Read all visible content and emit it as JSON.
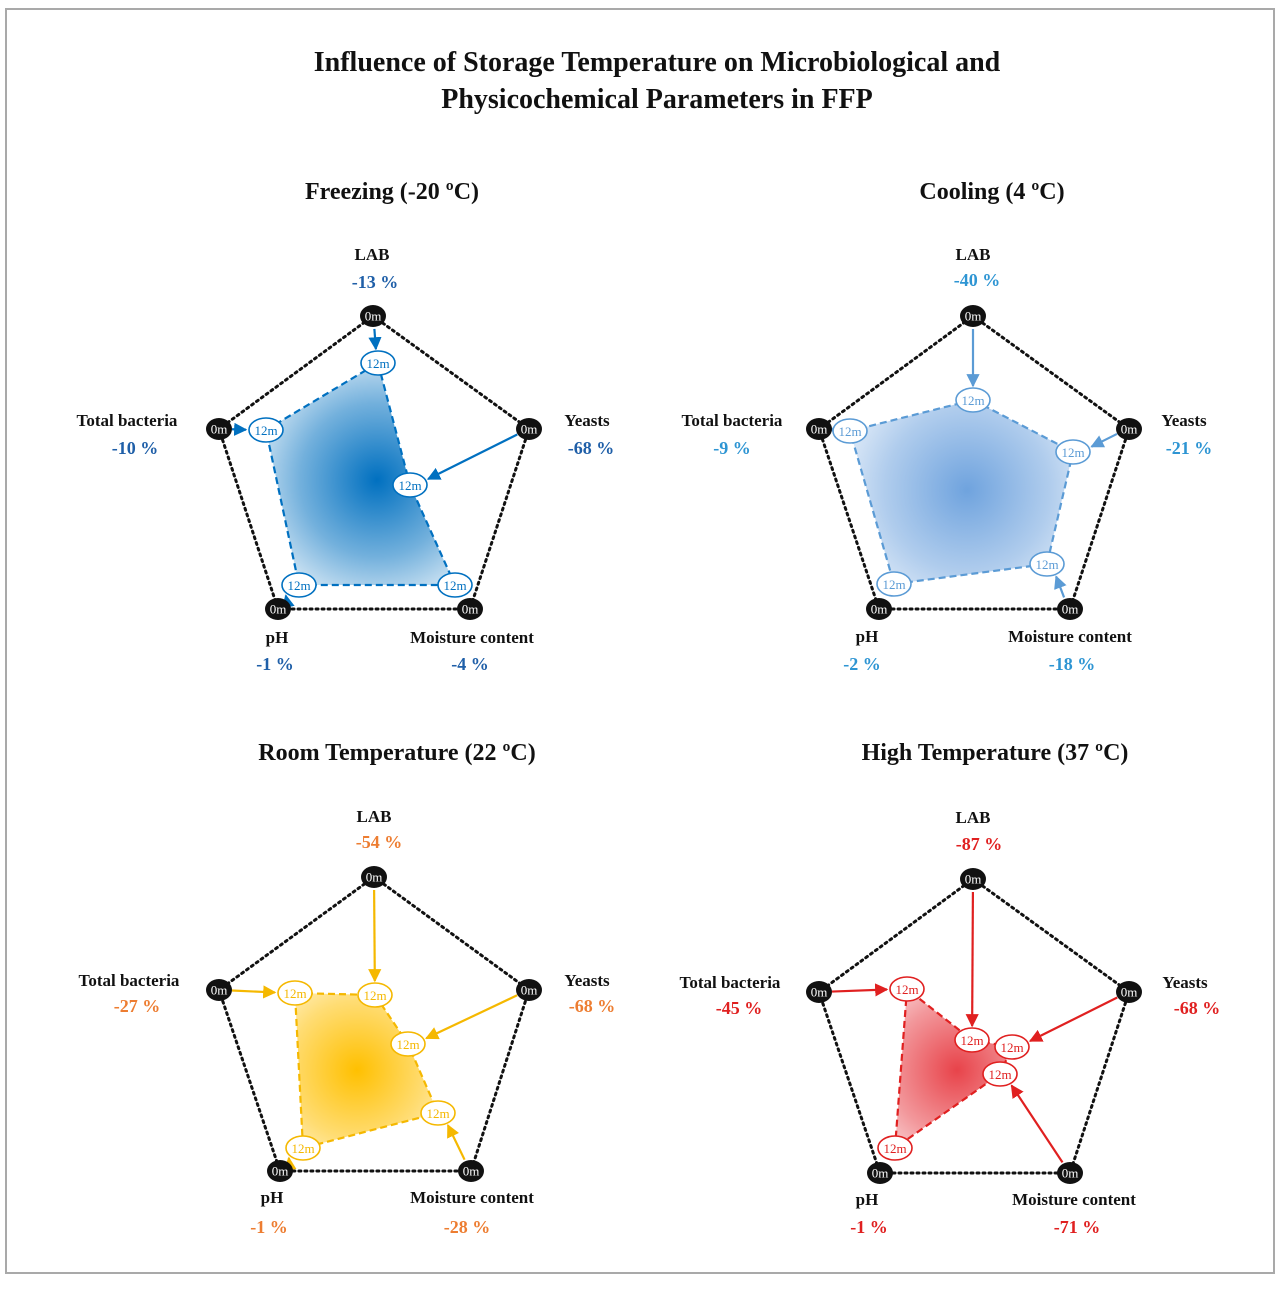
{
  "figure": {
    "title_line1": "Influence of Storage Temperature on Microbiological and",
    "title_line2": "Physicochemical Parameters in FFP"
  },
  "labels": {
    "start_node": "0m",
    "end_node": "12m"
  },
  "axes": [
    "LAB",
    "Yeasts",
    "Moisture content",
    "pH",
    "Total bacteria"
  ],
  "chart_data": {
    "type": "radar",
    "panels": [
      {
        "title": "Freezing (-20 ºC)",
        "color": "#0070c0",
        "fill_center": "#0070c0",
        "values": [
          {
            "axis": "LAB",
            "label": "-13 %",
            "change": -13
          },
          {
            "axis": "Yeasts",
            "label": "-68 %",
            "change": -68
          },
          {
            "axis": "Moisture content",
            "label": "-4 %",
            "change": -4
          },
          {
            "axis": "pH",
            "label": "-1 %",
            "change": -1
          },
          {
            "axis": "Total bacteria",
            "label": "-10 %",
            "change": -10
          }
        ]
      },
      {
        "title": "Cooling (4 ºC)",
        "color": "#5b9bd5",
        "fill_center": "#6fa3de",
        "values": [
          {
            "axis": "LAB",
            "label": "-40 %",
            "change": -40
          },
          {
            "axis": "Yeasts",
            "label": "-21 %",
            "change": -21
          },
          {
            "axis": "Moisture content",
            "label": "-18 %",
            "change": -18
          },
          {
            "axis": "pH",
            "label": "-2 %",
            "change": -2
          },
          {
            "axis": "Total bacteria",
            "label": "-9 %",
            "change": -9
          }
        ]
      },
      {
        "title": "Room Temperature (22 ºC)",
        "color": "#f5b800",
        "fill_center": "#ffc000",
        "values": [
          {
            "axis": "LAB",
            "label": "-54 %",
            "change": -54
          },
          {
            "axis": "Yeasts",
            "label": "-68 %",
            "change": -68
          },
          {
            "axis": "Moisture content",
            "label": "-28 %",
            "change": -28
          },
          {
            "axis": "pH",
            "label": "-1 %",
            "change": -1
          },
          {
            "axis": "Total bacteria",
            "label": "-27 %",
            "change": -27
          }
        ]
      },
      {
        "title": "High Temperature (37 ºC)",
        "color": "#e02020",
        "fill_center": "#e8434a",
        "values": [
          {
            "axis": "LAB",
            "label": "-87 %",
            "change": -87
          },
          {
            "axis": "Yeasts",
            "label": "-68 %",
            "change": -68
          },
          {
            "axis": "Moisture content",
            "label": "-71 %",
            "change": -71
          },
          {
            "axis": "pH",
            "label": "-1 %",
            "change": -1
          },
          {
            "axis": "Total bacteria",
            "label": "-45 %",
            "change": -45
          }
        ]
      }
    ]
  },
  "colors": {
    "pct_room": "#ed7d31",
    "pct_cooling": "#2e95d3",
    "pct_freezing": "#1f5fa8",
    "pct_high": "#e02020",
    "node_fill": "#111111"
  }
}
